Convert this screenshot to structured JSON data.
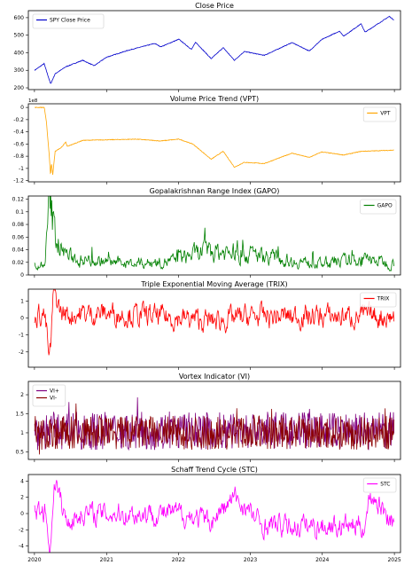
{
  "chart_data": [
    {
      "type": "line",
      "title": "Close Price",
      "xlabel": "",
      "ylabel": "",
      "x_start": "2020-01-02",
      "x_end": "2024-12-31",
      "xticks": [
        "2020",
        "2021",
        "2022",
        "2023",
        "2024",
        "2025"
      ],
      "ylim": [
        190,
        640
      ],
      "yticks": [
        200,
        300,
        400,
        500,
        600
      ],
      "legend": "top-left",
      "series": [
        {
          "name": "SPY Close Price",
          "color": "#0000cc",
          "points": [
            [
              "2020-01-02",
              300
            ],
            [
              "2020-02-19",
              338
            ],
            [
              "2020-03-23",
              222
            ],
            [
              "2020-04-15",
              280
            ],
            [
              "2020-06-08",
              320
            ],
            [
              "2020-09-02",
              357
            ],
            [
              "2020-10-30",
              326
            ],
            [
              "2020-12-31",
              374
            ],
            [
              "2021-04-15",
              412
            ],
            [
              "2021-09-02",
              453
            ],
            [
              "2021-10-04",
              434
            ],
            [
              "2022-01-03",
              477
            ],
            [
              "2022-03-08",
              419
            ],
            [
              "2022-03-29",
              460
            ],
            [
              "2022-06-16",
              366
            ],
            [
              "2022-08-16",
              429
            ],
            [
              "2022-10-12",
              357
            ],
            [
              "2022-12-01",
              407
            ],
            [
              "2023-03-13",
              385
            ],
            [
              "2023-07-31",
              458
            ],
            [
              "2023-10-27",
              410
            ],
            [
              "2023-12-29",
              475
            ],
            [
              "2024-03-28",
              523
            ],
            [
              "2024-04-19",
              495
            ],
            [
              "2024-07-16",
              565
            ],
            [
              "2024-08-05",
              517
            ],
            [
              "2024-12-06",
              607
            ],
            [
              "2024-12-31",
              586
            ]
          ]
        }
      ]
    },
    {
      "type": "line",
      "title": "Volume Price Trend (VPT)",
      "xlabel": "",
      "ylabel": "",
      "y_multiplier": "1e8",
      "ylim": [
        -1.22,
        0.06
      ],
      "yticks": [
        0.0,
        -0.2,
        -0.4,
        -0.6,
        -0.8,
        -1.0,
        -1.2
      ],
      "legend": "top-right",
      "series": [
        {
          "name": "VPT",
          "color": "#ffa500",
          "points": [
            [
              "2020-01-02",
              0.0
            ],
            [
              "2020-02-20",
              0.0
            ],
            [
              "2020-03-02",
              -0.25
            ],
            [
              "2020-03-09",
              -0.52
            ],
            [
              "2020-03-16",
              -0.78
            ],
            [
              "2020-03-23",
              -1.13
            ],
            [
              "2020-03-27",
              -0.9
            ],
            [
              "2020-04-03",
              -1.1
            ],
            [
              "2020-04-15",
              -0.72
            ],
            [
              "2020-05-15",
              -0.66
            ],
            [
              "2020-06-08",
              -0.57
            ],
            [
              "2020-06-15",
              -0.64
            ],
            [
              "2020-09-02",
              -0.54
            ],
            [
              "2021-06-01",
              -0.52
            ],
            [
              "2021-10-01",
              -0.55
            ],
            [
              "2022-01-03",
              -0.52
            ],
            [
              "2022-03-15",
              -0.6
            ],
            [
              "2022-06-16",
              -0.85
            ],
            [
              "2022-08-16",
              -0.72
            ],
            [
              "2022-10-12",
              -0.98
            ],
            [
              "2022-12-01",
              -0.9
            ],
            [
              "2023-03-13",
              -0.92
            ],
            [
              "2023-07-31",
              -0.75
            ],
            [
              "2023-10-27",
              -0.82
            ],
            [
              "2023-12-29",
              -0.73
            ],
            [
              "2024-04-19",
              -0.78
            ],
            [
              "2024-07-16",
              -0.72
            ],
            [
              "2024-12-31",
              -0.7
            ]
          ]
        }
      ]
    },
    {
      "type": "line",
      "title": "Gopalakrishnan Range Index (GAPO)",
      "xlabel": "",
      "ylabel": "",
      "ylim": [
        0.0,
        0.125
      ],
      "yticks": [
        0.0,
        0.02,
        0.04,
        0.06,
        0.08,
        0.1,
        0.12
      ],
      "legend": "top-right",
      "series": [
        {
          "name": "GAPO",
          "color": "#008000",
          "baseline": [
            [
              "2020-01-02",
              0.012
            ],
            [
              "2020-02-20",
              0.012
            ],
            [
              "2020-03-05",
              0.06
            ],
            [
              "2020-03-16",
              0.118
            ],
            [
              "2020-03-25",
              0.1
            ],
            [
              "2020-04-15",
              0.065
            ],
            [
              "2020-05-15",
              0.04
            ],
            [
              "2020-07-01",
              0.028
            ],
            [
              "2020-11-01",
              0.022
            ],
            [
              "2021-06-01",
              0.018
            ],
            [
              "2021-12-01",
              0.022
            ],
            [
              "2022-02-15",
              0.03
            ],
            [
              "2022-06-15",
              0.038
            ],
            [
              "2022-10-15",
              0.035
            ],
            [
              "2023-03-15",
              0.03
            ],
            [
              "2023-08-01",
              0.022
            ],
            [
              "2024-01-01",
              0.018
            ],
            [
              "2024-08-05",
              0.025
            ],
            [
              "2024-12-31",
              0.018
            ]
          ],
          "noise_amplitude": 0.5,
          "min": 0.005
        }
      ]
    },
    {
      "type": "line",
      "title": "Triple Exponential Moving Average (TRIX)",
      "xlabel": "",
      "ylabel": "",
      "ylim": [
        -2.9,
        1.7
      ],
      "yticks": [
        1,
        0,
        -1,
        -2
      ],
      "legend": "top-right",
      "series": [
        {
          "name": "TRIX",
          "color": "#ff0000",
          "baseline": [
            [
              "2020-01-02",
              0.2
            ],
            [
              "2020-02-20",
              0.25
            ],
            [
              "2020-03-05",
              -1.0
            ],
            [
              "2020-03-16",
              -2.6
            ],
            [
              "2020-03-25",
              -1.5
            ],
            [
              "2020-04-06",
              1.5
            ],
            [
              "2020-04-20",
              1.2
            ],
            [
              "2020-05-15",
              0.3
            ],
            [
              "2020-06-15",
              0.2
            ],
            [
              "2020-12-31",
              0.3
            ],
            [
              "2022-01-01",
              0.0
            ],
            [
              "2022-06-15",
              -0.2
            ],
            [
              "2023-01-01",
              0.1
            ],
            [
              "2024-12-31",
              0.1
            ]
          ],
          "noise_amplitude": 0.6
        }
      ]
    },
    {
      "type": "line",
      "title": "Vortex Indicator (VI)",
      "xlabel": "",
      "ylabel": "",
      "ylim": [
        0.3,
        2.35
      ],
      "yticks": [
        0.5,
        1.0,
        1.5,
        2.0
      ],
      "legend": "top-left",
      "series": [
        {
          "name": "VI+",
          "color": "#800080",
          "center": 1.05,
          "amplitude": 0.5
        },
        {
          "name": "VI-",
          "color": "#8b0000",
          "center": 1.0,
          "amplitude": 0.45
        }
      ]
    },
    {
      "type": "line",
      "title": "Schaff Trend Cycle (STC)",
      "xlabel": "",
      "ylabel": "",
      "ylim": [
        -4.8,
        4.8
      ],
      "yticks": [
        4,
        2,
        0,
        -2,
        -4
      ],
      "legend": "top-right",
      "series": [
        {
          "name": "STC",
          "color": "#ff00ff",
          "baseline": [
            [
              "2020-01-02",
              0.0
            ],
            [
              "2020-02-25",
              0.4
            ],
            [
              "2020-03-10",
              -2.5
            ],
            [
              "2020-03-24",
              -4.4
            ],
            [
              "2020-04-10",
              4.5
            ],
            [
              "2020-05-10",
              1.8
            ],
            [
              "2020-06-10",
              -1.0
            ],
            [
              "2020-09-01",
              0.0
            ],
            [
              "2021-12-31",
              0.0
            ],
            [
              "2022-06-15",
              -1.0
            ],
            [
              "2022-10-15",
              2.0
            ],
            [
              "2023-03-01",
              -1.5
            ],
            [
              "2024-08-05",
              -1.5
            ],
            [
              "2024-09-01",
              2.5
            ],
            [
              "2024-12-31",
              -1.2
            ]
          ],
          "noise_amplitude": 1.2
        }
      ]
    }
  ]
}
